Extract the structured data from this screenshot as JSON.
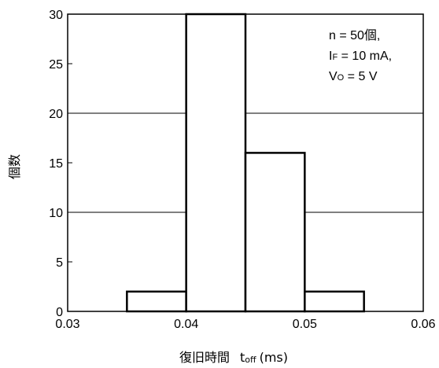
{
  "chart_data": {
    "type": "bar",
    "ylabel": "個数",
    "xlabel_main": "復旧時間",
    "xlabel_var": "t",
    "xlabel_var_sub": "off",
    "xlabel_unit": "(ms)",
    "xlim": [
      0.03,
      0.06
    ],
    "ylim": [
      0,
      30
    ],
    "xticks": [
      "0.03",
      "0.04",
      "0.05",
      "0.06"
    ],
    "yticks": [
      "0",
      "5",
      "10",
      "15",
      "20",
      "25",
      "30"
    ],
    "grid_y_values": [
      10,
      20
    ],
    "bins": [
      {
        "from": 0.035,
        "to": 0.04,
        "value": 2
      },
      {
        "from": 0.04,
        "to": 0.045,
        "value": 30
      },
      {
        "from": 0.045,
        "to": 0.05,
        "value": 16
      },
      {
        "from": 0.05,
        "to": 0.055,
        "value": 2
      }
    ],
    "annotation": {
      "line1": "n = 50個,",
      "line2_pre": "I",
      "line2_sub": "F",
      "line2_post": " = 10 mA,",
      "line3_pre": "V",
      "line3_sub": "O",
      "line3_post": " = 5 V"
    }
  }
}
